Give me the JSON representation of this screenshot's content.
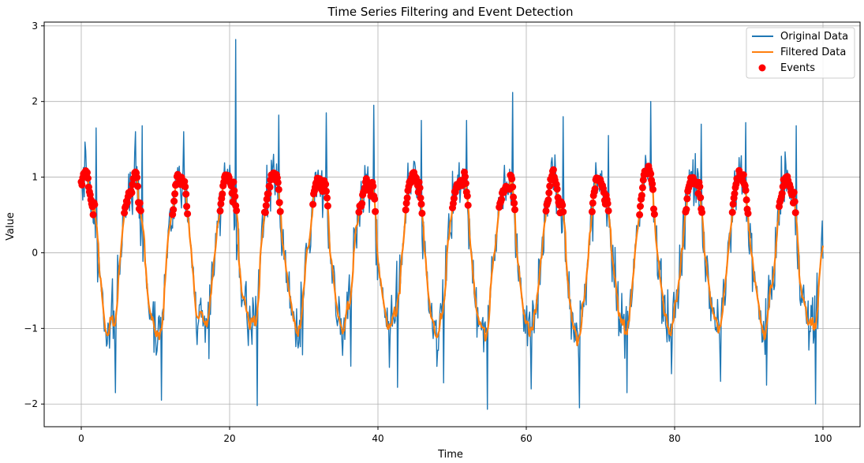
{
  "chart_data": {
    "type": "line",
    "title": "Time Series Filtering and Event Detection",
    "xlabel": "Time",
    "ylabel": "Value",
    "xlim": [
      -5,
      105
    ],
    "ylim": [
      -2.3,
      3.05
    ],
    "xticks": [
      0,
      20,
      40,
      60,
      80,
      100
    ],
    "yticks": [
      -2,
      -1,
      0,
      1,
      2,
      3
    ],
    "grid": true,
    "legend": "top-right",
    "period": 6.3,
    "series": [
      {
        "name": "Original Data",
        "color": "#1f77b4",
        "values_description_only": false
      },
      {
        "name": "Filtered Data",
        "color": "#ff7f0e"
      },
      {
        "name": "Events",
        "color": "#ff0000"
      }
    ],
    "original_peaks": [
      {
        "x": 0.6,
        "y": 1.35
      },
      {
        "x": 2.0,
        "y": 1.65
      },
      {
        "x": 7.3,
        "y": 1.6
      },
      {
        "x": 8.2,
        "y": 1.68
      },
      {
        "x": 13.8,
        "y": 1.6
      },
      {
        "x": 20.8,
        "y": 2.82
      },
      {
        "x": 26.6,
        "y": 1.82
      },
      {
        "x": 33.0,
        "y": 1.85
      },
      {
        "x": 39.4,
        "y": 1.95
      },
      {
        "x": 45.8,
        "y": 1.75
      },
      {
        "x": 52.0,
        "y": 1.75
      },
      {
        "x": 58.2,
        "y": 2.12
      },
      {
        "x": 65.0,
        "y": 1.8
      },
      {
        "x": 71.1,
        "y": 1.55
      },
      {
        "x": 76.8,
        "y": 2.0
      },
      {
        "x": 83.6,
        "y": 1.7
      },
      {
        "x": 89.6,
        "y": 1.72
      },
      {
        "x": 96.4,
        "y": 1.68
      }
    ],
    "original_troughs": [
      {
        "x": 4.6,
        "y": -1.85
      },
      {
        "x": 10.8,
        "y": -1.95
      },
      {
        "x": 17.2,
        "y": -1.4
      },
      {
        "x": 23.7,
        "y": -2.02
      },
      {
        "x": 29.8,
        "y": -1.35
      },
      {
        "x": 36.3,
        "y": -1.5
      },
      {
        "x": 42.6,
        "y": -1.78
      },
      {
        "x": 48.8,
        "y": -1.72
      },
      {
        "x": 54.8,
        "y": -2.07
      },
      {
        "x": 60.7,
        "y": -1.8
      },
      {
        "x": 67.2,
        "y": -2.05
      },
      {
        "x": 73.6,
        "y": -1.85
      },
      {
        "x": 79.6,
        "y": -1.6
      },
      {
        "x": 86.2,
        "y": -1.7
      },
      {
        "x": 92.4,
        "y": -1.75
      },
      {
        "x": 99.0,
        "y": -2.0
      }
    ],
    "event_threshold": 0.5,
    "events_max_per_cycle": [
      0.95,
      1.05,
      1.55,
      1.15,
      1.3,
      1.2,
      0.95,
      1.1,
      1.4,
      1.22,
      1.1,
      1.35,
      1.1,
      1.4,
      1.35
    ]
  }
}
